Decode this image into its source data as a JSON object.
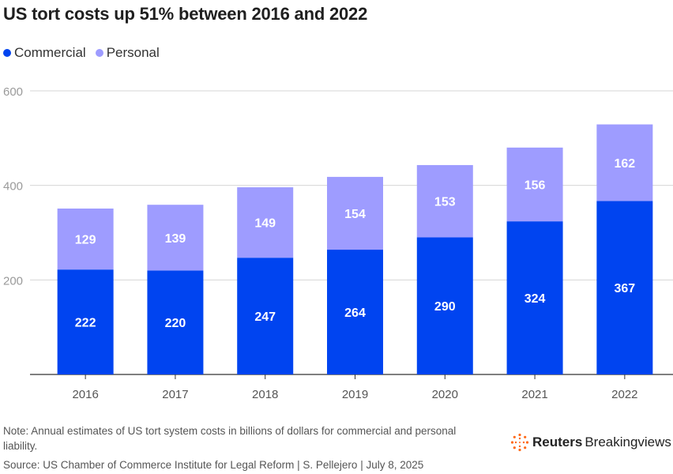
{
  "chart_data": {
    "type": "bar",
    "stacked": true,
    "title": "US tort costs up 51% between 2016 and 2022",
    "categories": [
      "2016",
      "2017",
      "2018",
      "2019",
      "2020",
      "2021",
      "2022"
    ],
    "series": [
      {
        "name": "Commercial",
        "color": "#0044f0",
        "values": [
          222,
          220,
          247,
          264,
          290,
          324,
          367
        ]
      },
      {
        "name": "Personal",
        "color": "#9e9cff",
        "values": [
          129,
          139,
          149,
          154,
          153,
          156,
          162
        ]
      }
    ],
    "yticks": [
      200,
      400,
      600
    ],
    "ylim": [
      0,
      600
    ],
    "xlabel": "",
    "ylabel": "",
    "grid": true,
    "legend_position": "top-left"
  },
  "footer": {
    "note": "Note: Annual estimates of US tort system costs in billions of dollars for commercial and personal liability.",
    "source": "Source: US Chamber of Commerce Institute for Legal Reform | S. Pellejero | July 8, 2025",
    "brand_strong": "Reuters",
    "brand_light": "Breakingviews"
  },
  "icons": {
    "logo": "reuters-dotted-circle-icon"
  }
}
